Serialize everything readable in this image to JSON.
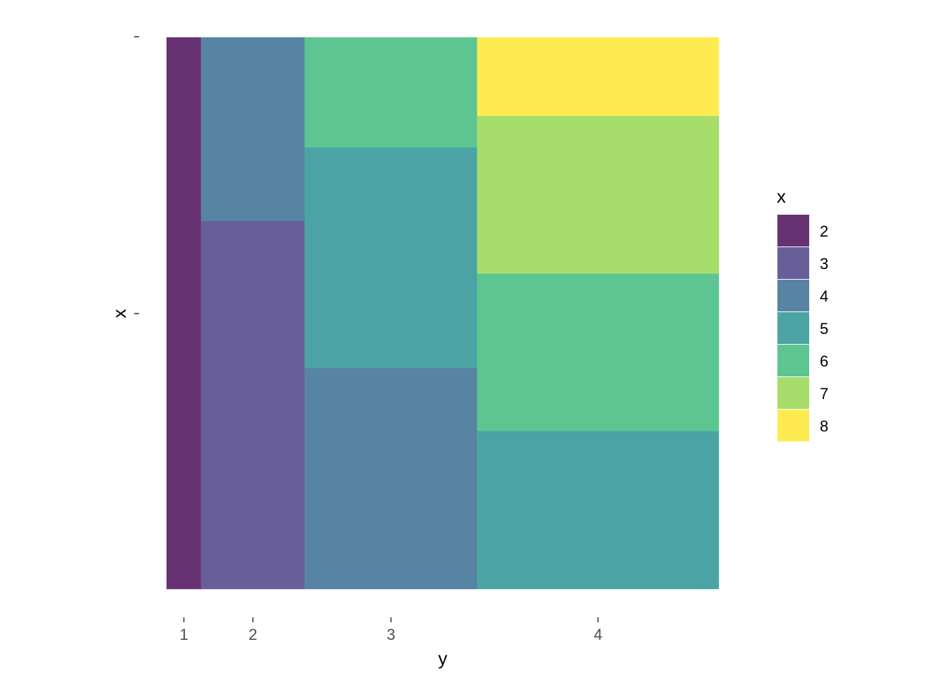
{
  "chart_data": {
    "type": "mosaic",
    "title": "",
    "xlabel": "y",
    "ylabel": "x",
    "x_tick_labels": [
      "1",
      "2",
      "3",
      "4"
    ],
    "y_tick_labels": [
      "",
      ""
    ],
    "grid": false,
    "legend": {
      "title": "x",
      "placement": "right",
      "entries": [
        "2",
        "3",
        "4",
        "5",
        "6",
        "7",
        "8"
      ]
    },
    "colors": {
      "2": "#673272",
      "3": "#685f9a",
      "4": "#5784a3",
      "5": "#4ba4a3",
      "6": "#5cc592",
      "7": "#a6dd6b",
      "8": "#feeb52"
    },
    "columns": [
      {
        "category": "1",
        "segments": [
          {
            "fill": "2",
            "count": 1
          }
        ]
      },
      {
        "category": "2",
        "segments": [
          {
            "fill": "4",
            "count": 1
          },
          {
            "fill": "3",
            "count": 2
          }
        ]
      },
      {
        "category": "3",
        "segments": [
          {
            "fill": "6",
            "count": 1
          },
          {
            "fill": "5",
            "count": 2
          },
          {
            "fill": "4",
            "count": 2
          }
        ]
      },
      {
        "category": "4",
        "segments": [
          {
            "fill": "8",
            "count": 1
          },
          {
            "fill": "7",
            "count": 2
          },
          {
            "fill": "6",
            "count": 2
          },
          {
            "fill": "5",
            "count": 2
          }
        ]
      }
    ]
  }
}
